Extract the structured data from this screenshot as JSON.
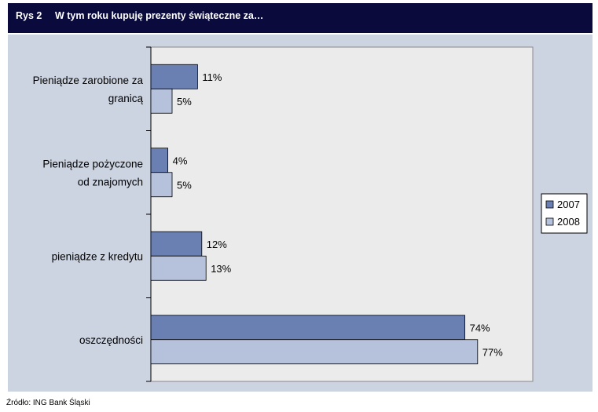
{
  "header": {
    "number": "Rys 2",
    "title": "W tym roku kupuję prezenty świąteczne za…"
  },
  "source": "Źródło: ING Bank Śląski",
  "colors": {
    "series_2007": "#6a7fb2",
    "series_2008": "#b6c1dc",
    "plot_bg": "#ebebeb",
    "panel_bg": "#ccd3e1",
    "header_bg": "#0a0a3c"
  },
  "chart_data": {
    "type": "bar",
    "orientation": "horizontal",
    "title": "W tym roku kupuję prezenty świąteczne za…",
    "categories": [
      [
        "Pieniądze zarobione za",
        "granicą"
      ],
      [
        "Pieniądze pożyczone",
        "od znajomych"
      ],
      [
        "pieniądze z kredytu"
      ],
      [
        "oszczędności"
      ]
    ],
    "series": [
      {
        "name": "2007",
        "values": [
          11,
          4,
          12,
          74
        ],
        "labels": [
          "11%",
          "4%",
          "12%",
          "74%"
        ]
      },
      {
        "name": "2008",
        "values": [
          5,
          5,
          13,
          77
        ],
        "labels": [
          "5%",
          "5%",
          "13%",
          "77%"
        ]
      }
    ],
    "xlim": [
      0,
      90
    ],
    "legend_position": "right",
    "grid": false
  }
}
